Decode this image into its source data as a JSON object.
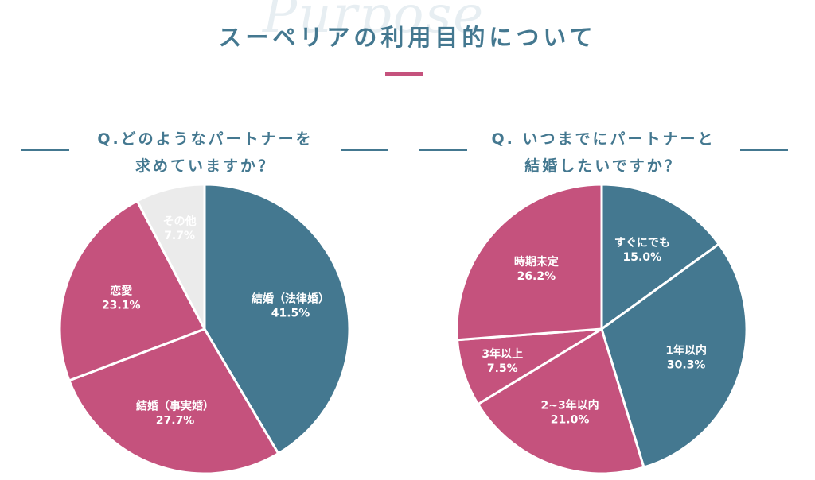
{
  "header": {
    "watermark": "Purpose",
    "title": "スーペリアの利用目的について"
  },
  "chart_data": [
    {
      "type": "pie",
      "title": "Q.どのようなパートナーを求めていますか？",
      "title_lines": [
        "Q.どのようなパートナーを",
        "求めていますか？"
      ],
      "slices": [
        {
          "label": "結婚（法律婚）",
          "value": 41.5,
          "value_text": "41.5%",
          "color": "#447890",
          "text_color": "#ffffff"
        },
        {
          "label": "結婚（事実婚）",
          "value": 27.7,
          "value_text": "27.7%",
          "color": "#c5527d",
          "text_color": "#ffffff"
        },
        {
          "label": "恋愛",
          "value": 23.1,
          "value_text": "23.1%",
          "color": "#c5527d",
          "text_color": "#ffffff"
        },
        {
          "label": "その他",
          "value": 7.7,
          "value_text": "7.7%",
          "color": "#ebebeb",
          "text_color": "#666666"
        }
      ]
    },
    {
      "type": "pie",
      "title": "Q. いつまでにパートナーと結婚したいですか？",
      "title_lines": [
        "Q. いつまでにパートナーと",
        "結婚したいですか？"
      ],
      "slices": [
        {
          "label": "すぐにでも",
          "value": 15.0,
          "value_text": "15.0%",
          "color": "#447890",
          "text_color": "#ffffff"
        },
        {
          "label": "1年以内",
          "value": 30.3,
          "value_text": "30.3%",
          "color": "#447890",
          "text_color": "#ffffff"
        },
        {
          "label": "2~3年以内",
          "value": 21.0,
          "value_text": "21.0%",
          "color": "#c5527d",
          "text_color": "#ffffff"
        },
        {
          "label": "3年以上",
          "value": 7.5,
          "value_text": "7.5%",
          "color": "#c5527d",
          "text_color": "#ffffff"
        },
        {
          "label": "時期未定",
          "value": 26.2,
          "value_text": "26.2%",
          "color": "#c5527d",
          "text_color": "#ffffff"
        }
      ]
    }
  ]
}
